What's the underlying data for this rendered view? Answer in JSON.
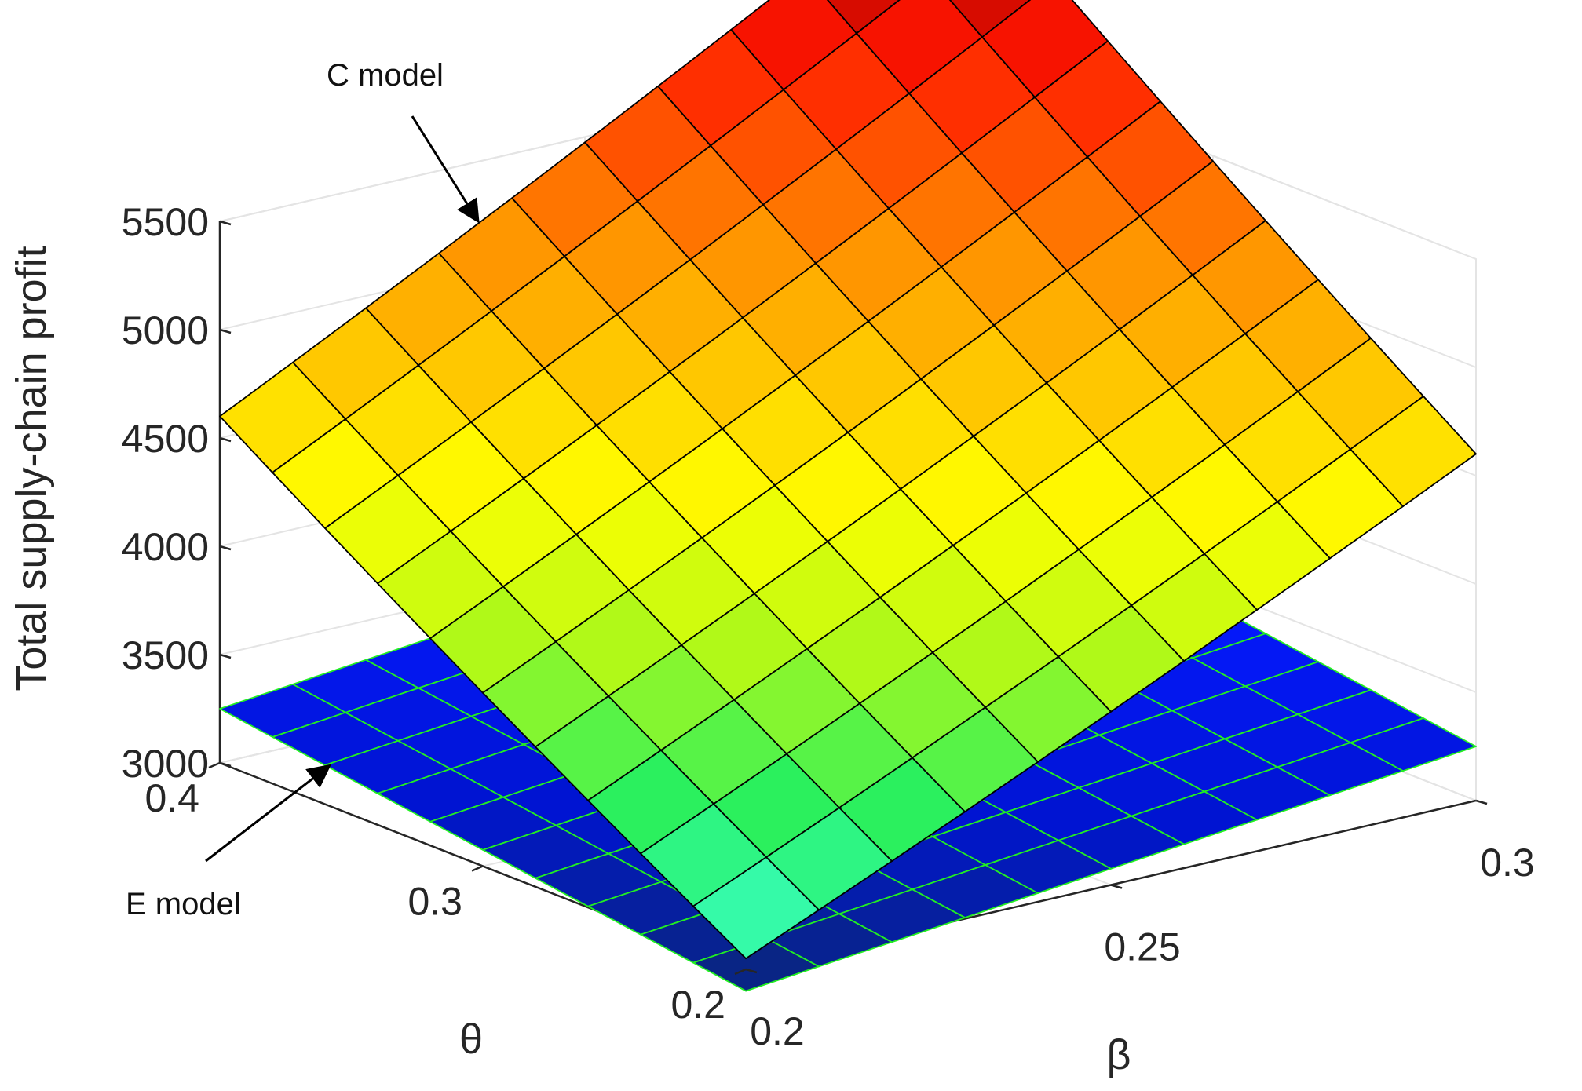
{
  "chart_data": {
    "type": "surface",
    "zlabel": "Total supply-chain profit",
    "xlabel": "β",
    "ylabel": "θ",
    "xlim": [
      0.2,
      0.3
    ],
    "ylim": [
      0.2,
      0.4
    ],
    "zlim": [
      3000,
      5500
    ],
    "x_ticks": [
      "0.2",
      "0.25",
      "0.3"
    ],
    "y_ticks": [
      "0.2",
      "0.3",
      "0.4"
    ],
    "z_ticks": [
      "3000",
      "3500",
      "4000",
      "4500",
      "5000",
      "5500"
    ],
    "grid": true,
    "grid_size": 11,
    "series": [
      {
        "name": "C model",
        "colormap": "jet",
        "edge_color": "#000000",
        "corners": {
          "beta0.2_theta0.2": 3050,
          "beta0.3_theta0.2": 4500,
          "beta0.2_theta0.4": 4500,
          "beta0.3_theta0.4": 6200
        },
        "curvature": 100
      },
      {
        "name": "E model",
        "colormap": "blue",
        "edge_color": "#22ee22",
        "corners": {
          "beta0.2_theta0.2": 2900,
          "beta0.3_theta0.2": 3250,
          "beta0.2_theta0.4": 3250,
          "beta0.3_theta0.4": 3600
        },
        "curvature": 0
      }
    ],
    "annotations": [
      {
        "text": "C model",
        "target": "C model"
      },
      {
        "text": "E model",
        "target": "E model"
      }
    ],
    "colors": {
      "edge_c": "#000000",
      "edge_e": "#22ee22",
      "axis": "#262626",
      "grid": "#e4e4e4"
    }
  }
}
